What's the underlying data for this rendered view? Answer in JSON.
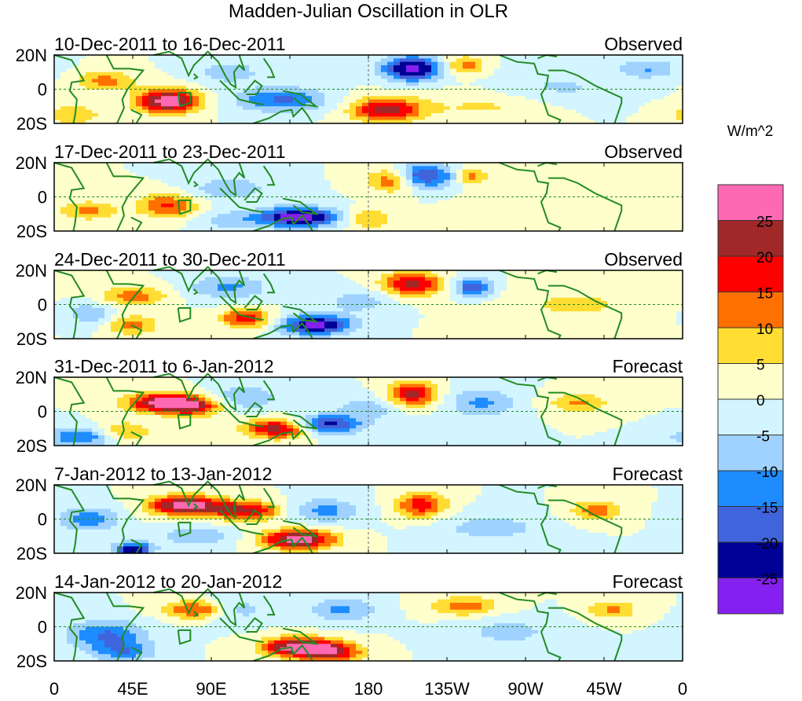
{
  "chart_data": {
    "type": "heatmap",
    "title": "Madden-Julian Oscillation in OLR",
    "units_label": "W/m^2",
    "x_ticks": [
      "0",
      "45E",
      "90E",
      "135E",
      "180",
      "135W",
      "90W",
      "45W",
      "0"
    ],
    "y_ticks": [
      "20N",
      "0",
      "20S"
    ],
    "lon_range": [
      0,
      360
    ],
    "lat_range": [
      -20,
      20
    ],
    "levels": [
      -25,
      -20,
      -15,
      -10,
      -5,
      0,
      5,
      10,
      15,
      20,
      25
    ],
    "level_labels": [
      "25",
      "20",
      "15",
      "10",
      "5",
      "0",
      "-5",
      "-10",
      "-15",
      "-20",
      "-25"
    ],
    "colors": [
      "#8520f0",
      "#000096",
      "#4064dc",
      "#1e8cff",
      "#a0d2ff",
      "#d2f5ff",
      "#ffffcc",
      "#ffdd33",
      "#ff7000",
      "#ff0000",
      "#a02828",
      "#ff69b4"
    ],
    "panels": [
      {
        "period": "10-Dec-2011 to 16-Dec-2011",
        "kind": "Observed",
        "anomalies": [
          [
            65,
            -7,
            30,
            12,
            5
          ],
          [
            205,
            12,
            -28,
            12,
            5
          ],
          [
            130,
            -6,
            -16,
            18,
            5
          ],
          [
            190,
            -12,
            22,
            14,
            5
          ],
          [
            30,
            5,
            12,
            12,
            4
          ],
          [
            235,
            14,
            13,
            8,
            4
          ],
          [
            340,
            12,
            -10,
            12,
            4
          ],
          [
            100,
            10,
            -8,
            14,
            5
          ],
          [
            250,
            -10,
            6,
            30,
            6
          ],
          [
            10,
            -15,
            8,
            14,
            5
          ],
          [
            290,
            0,
            -6,
            25,
            8
          ]
        ]
      },
      {
        "period": "17-Dec-2011 to 23-Dec-2011",
        "kind": "Observed",
        "anomalies": [
          [
            140,
            -12,
            -30,
            16,
            4
          ],
          [
            210,
            12,
            -24,
            12,
            5
          ],
          [
            65,
            -5,
            16,
            12,
            5
          ],
          [
            195,
            10,
            19,
            10,
            5
          ],
          [
            180,
            -13,
            11,
            10,
            4
          ],
          [
            20,
            -8,
            11,
            12,
            4
          ],
          [
            100,
            5,
            -9,
            16,
            5
          ],
          [
            240,
            12,
            12,
            6,
            4
          ],
          [
            100,
            -14,
            -8,
            12,
            4
          ],
          [
            300,
            -5,
            5,
            30,
            8
          ]
        ]
      },
      {
        "period": "24-Dec-2011 to 30-Dec-2011",
        "kind": "Observed",
        "anomalies": [
          [
            150,
            -12,
            -28,
            14,
            4
          ],
          [
            205,
            12,
            22,
            12,
            5
          ],
          [
            240,
            10,
            -19,
            8,
            4
          ],
          [
            45,
            5,
            13,
            14,
            4
          ],
          [
            110,
            -8,
            19,
            10,
            4
          ],
          [
            100,
            10,
            -11,
            16,
            5
          ],
          [
            45,
            -12,
            13,
            10,
            4
          ],
          [
            20,
            -5,
            -9,
            10,
            5
          ],
          [
            300,
            0,
            6,
            30,
            8
          ],
          [
            175,
            2,
            -8,
            14,
            5
          ]
        ]
      },
      {
        "period": "31-Dec-2011 to 6-Jan-2012",
        "kind": "Forecast",
        "anomalies": [
          [
            62,
            5,
            26,
            14,
            4
          ],
          [
            80,
            3,
            18,
            12,
            4
          ],
          [
            130,
            -10,
            25,
            14,
            4
          ],
          [
            155,
            -8,
            -24,
            14,
            4
          ],
          [
            205,
            10,
            22,
            10,
            5
          ],
          [
            15,
            -15,
            -15,
            14,
            4
          ],
          [
            300,
            5,
            11,
            12,
            4
          ],
          [
            245,
            5,
            -11,
            14,
            6
          ],
          [
            110,
            8,
            -10,
            14,
            5
          ],
          [
            40,
            -12,
            12,
            10,
            4
          ],
          [
            180,
            2,
            -8,
            14,
            5
          ]
        ]
      },
      {
        "period": "7-Jan-2012 to 13-Jan-2012",
        "kind": "Forecast",
        "anomalies": [
          [
            75,
            8,
            30,
            14,
            4
          ],
          [
            110,
            5,
            21,
            14,
            4
          ],
          [
            140,
            -12,
            30,
            14,
            4
          ],
          [
            210,
            8,
            19,
            10,
            5
          ],
          [
            310,
            5,
            13,
            10,
            4
          ],
          [
            45,
            -18,
            -24,
            8,
            3
          ],
          [
            20,
            0,
            -13,
            12,
            5
          ],
          [
            155,
            5,
            -12,
            14,
            5
          ],
          [
            80,
            -10,
            -10,
            14,
            4
          ],
          [
            250,
            -5,
            -8,
            20,
            6
          ]
        ]
      },
      {
        "period": "14-Jan-2012 to 20-Jan-2012",
        "kind": "Forecast",
        "anomalies": [
          [
            85,
            10,
            21,
            14,
            4
          ],
          [
            140,
            -12,
            30,
            14,
            4
          ],
          [
            160,
            -15,
            19,
            12,
            4
          ],
          [
            235,
            12,
            13,
            14,
            4
          ],
          [
            320,
            10,
            11,
            10,
            4
          ],
          [
            30,
            -5,
            -16,
            16,
            6
          ],
          [
            100,
            10,
            -13,
            14,
            5
          ],
          [
            165,
            10,
            -11,
            14,
            5
          ],
          [
            40,
            -15,
            -12,
            12,
            4
          ],
          [
            260,
            -3,
            -7,
            20,
            6
          ]
        ]
      }
    ]
  }
}
